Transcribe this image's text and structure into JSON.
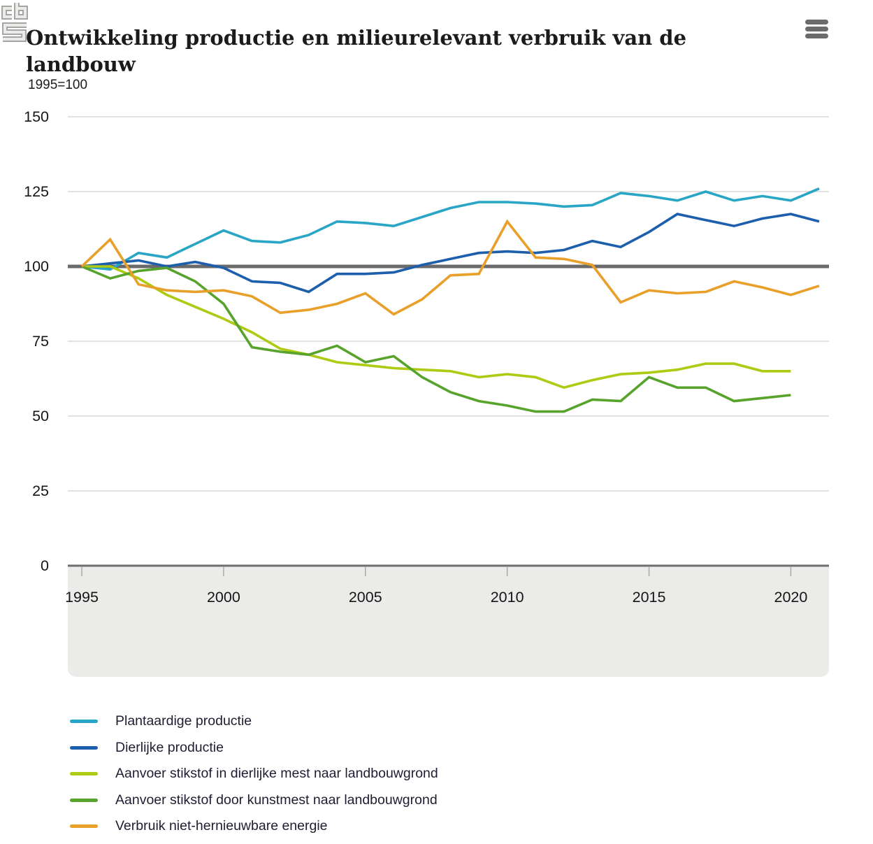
{
  "header": {
    "title_line1": "Ontwikkeling productie en milieurelevant verbruik van de",
    "title_line2": "landbouw",
    "subtitle": "1995=100",
    "menu_icon": "hamburger-menu-icon"
  },
  "footer": {
    "logo": "CBS"
  },
  "chart_data": {
    "type": "line",
    "title": "Ontwikkeling productie en milieurelevant verbruik van de landbouw",
    "unit_label": "1995=100",
    "ylim": [
      0,
      150
    ],
    "y_ticks": [
      0,
      25,
      50,
      75,
      100,
      125,
      150
    ],
    "x_ticks": [
      1995,
      2000,
      2005,
      2010,
      2015,
      2020
    ],
    "baseline": 100,
    "grid": true,
    "legend_position": "bottom",
    "x": [
      1995,
      1996,
      1997,
      1998,
      1999,
      2000,
      2001,
      2002,
      2003,
      2004,
      2005,
      2006,
      2007,
      2008,
      2009,
      2010,
      2011,
      2012,
      2013,
      2014,
      2015,
      2016,
      2017,
      2018,
      2019,
      2020,
      2021
    ],
    "series": [
      {
        "name": "Plantaardige productie",
        "color": "#29a5c5",
        "values": [
          100,
          99,
          104.5,
          103,
          107.5,
          112,
          108.5,
          108,
          110.5,
          115,
          114.5,
          113.5,
          116.5,
          119.5,
          121.5,
          121.5,
          121,
          120,
          120.5,
          124.5,
          123.5,
          122,
          125,
          122,
          123.5,
          122,
          126
        ]
      },
      {
        "name": "Dierlijke productie",
        "color": "#1d5fac",
        "values": [
          100,
          101,
          102,
          100,
          101.5,
          99.5,
          95,
          94.5,
          91.5,
          97.5,
          97.5,
          98,
          100.5,
          102.5,
          104.5,
          105,
          104.5,
          105.5,
          108.5,
          106.5,
          111.5,
          117.5,
          115.5,
          113.5,
          116,
          117.5,
          115
        ]
      },
      {
        "name": "Aanvoer stikstof in dierlijke mest naar landbouwgrond",
        "color": "#aeca12",
        "values": [
          100,
          100,
          96,
          90.5,
          86.5,
          82.5,
          78,
          72.5,
          70.5,
          68,
          67,
          66,
          65.5,
          65,
          63,
          64,
          63,
          59.5,
          62,
          64,
          64.5,
          65.5,
          67.5,
          67.5,
          65,
          65,
          null
        ]
      },
      {
        "name": "Aanvoer stikstof door kunstmest naar landbouwgrond",
        "color": "#58a32c",
        "values": [
          100,
          96,
          98.5,
          99.5,
          95,
          87.5,
          73,
          71.5,
          70.5,
          73.5,
          68,
          70,
          63,
          58,
          55,
          53.5,
          51.5,
          51.5,
          55.5,
          55,
          63,
          59.5,
          59.5,
          55,
          56,
          57,
          null
        ]
      },
      {
        "name": "Verbruik niet-hernieuwbare energie",
        "color": "#e8a02b",
        "values": [
          100,
          109,
          94,
          92,
          91.5,
          92,
          90,
          84.5,
          85.5,
          87.5,
          91,
          84,
          89,
          97,
          97.5,
          115,
          103,
          102.5,
          100.5,
          88,
          92,
          91,
          91.5,
          95,
          93,
          90.5,
          93.5
        ]
      }
    ],
    "colors": {
      "grid": "#d9d9d9",
      "baseline": "#6a6a6a",
      "axis": "#6e6e6e",
      "tick": "#aaaaa8",
      "band": "#ebebe9",
      "logo": "#a5a5a3"
    }
  }
}
